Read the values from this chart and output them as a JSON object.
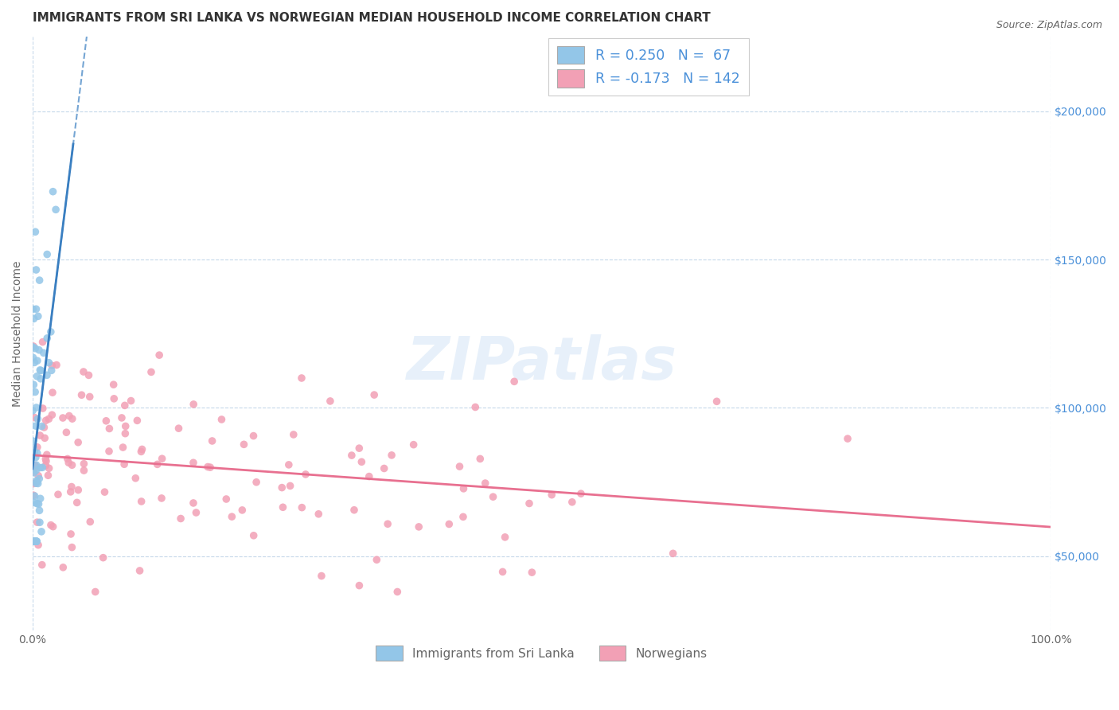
{
  "title": "IMMIGRANTS FROM SRI LANKA VS NORWEGIAN MEDIAN HOUSEHOLD INCOME CORRELATION CHART",
  "source": "Source: ZipAtlas.com",
  "ylabel": "Median Household Income",
  "ytick_values": [
    50000,
    100000,
    150000,
    200000
  ],
  "ytick_labels": [
    "$50,000",
    "$100,000",
    "$150,000",
    "$200,000"
  ],
  "ylim": [
    25000,
    225000
  ],
  "xlim": [
    0.0,
    1.0
  ],
  "legend_r1": "R = 0.250",
  "legend_n1": "N =  67",
  "legend_r2": "R = -0.173",
  "legend_n2": "N = 142",
  "color_blue": "#93c6e8",
  "color_pink": "#f2a0b5",
  "color_blue_line": "#3a7fc1",
  "color_pink_line": "#e87090",
  "color_text_blue": "#4a90d9",
  "color_text_dark": "#333333",
  "color_text_gray": "#666666",
  "background_color": "#ffffff",
  "grid_color": "#c5d8ea",
  "watermark_text": "ZIPatlas",
  "title_fontsize": 11,
  "axis_label_fontsize": 10,
  "tick_fontsize": 10,
  "sri_lanka_seed": 7,
  "norwegian_seed": 13
}
